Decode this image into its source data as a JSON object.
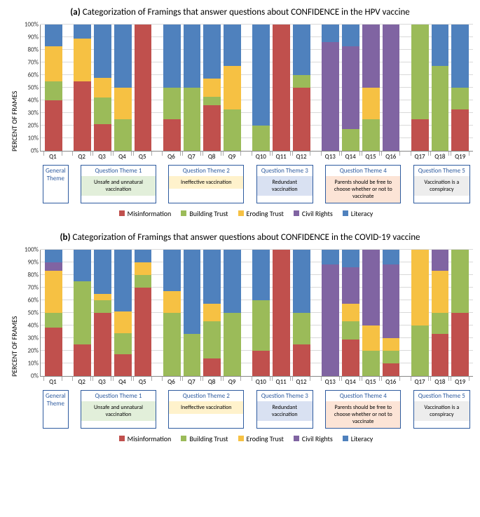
{
  "colors": {
    "misinformation": "#c0504d",
    "building_trust": "#9bbb59",
    "eroding_trust": "#f6c143",
    "civil_rights": "#8064a2",
    "literacy": "#4f81bd",
    "grid": "#d9d9d9",
    "axis": "#888888",
    "theme_border": "#2e5b9f",
    "theme1_bg": "#e2efda",
    "theme2_bg": "#fff2cc",
    "theme3_bg": "#d9e1f2",
    "theme4_bg": "#fce4d6",
    "theme5_bg": "#ededed"
  },
  "yaxis": {
    "label": "PERCENT OF FRAMES",
    "ticks": [
      0,
      10,
      20,
      30,
      40,
      50,
      60,
      70,
      80,
      90,
      100
    ]
  },
  "legend": [
    "Misinformation",
    "Building Trust",
    "Eroding Trust",
    "Civil Rights",
    "Literacy"
  ],
  "legend_keys": [
    "misinformation",
    "building_trust",
    "eroding_trust",
    "civil_rights",
    "literacy"
  ],
  "categories": [
    "Q1",
    "Q2",
    "Q3",
    "Q4",
    "Q5",
    "Q6",
    "Q7",
    "Q8",
    "Q9",
    "Q10",
    "Q11",
    "Q12",
    "Q13",
    "Q14",
    "Q15",
    "Q16",
    "Q17",
    "Q18",
    "Q19"
  ],
  "groups": [
    {
      "span": 1,
      "title": "General Theme",
      "sub": "",
      "bg": "#ffffff"
    },
    {
      "span": 4,
      "title": "Question Theme 1",
      "sub": "Unsafe and unnatural vaccination",
      "bg": "#e2efda"
    },
    {
      "span": 4,
      "title": "Question Theme 2",
      "sub": "Ineffective vaccination",
      "bg": "#fff2cc"
    },
    {
      "span": 3,
      "title": "Question Theme 3",
      "sub": "Redundant vaccination",
      "bg": "#d9e1f2"
    },
    {
      "span": 4,
      "title": "Question Theme 4",
      "sub": "Parents should be free to choose whether or not to vaccinate",
      "bg": "#fce4d6"
    },
    {
      "span": 3,
      "title": "Question Theme 5",
      "sub": "Vaccination is a conspiracy",
      "bg": "#ededed"
    }
  ],
  "panels": {
    "a": {
      "title_prefix": "(a)",
      "title": "Categorization of Framings that answer questions about CONFIDENCE in the HPV vaccine",
      "data": [
        {
          "misinformation": 40,
          "building_trust": 15,
          "eroding_trust": 28,
          "civil_rights": 0,
          "literacy": 17
        },
        {
          "misinformation": 55,
          "building_trust": 0,
          "eroding_trust": 34,
          "civil_rights": 0,
          "literacy": 11
        },
        {
          "misinformation": 21,
          "building_trust": 21,
          "eroding_trust": 16,
          "civil_rights": 0,
          "literacy": 42
        },
        {
          "misinformation": 0,
          "building_trust": 25,
          "eroding_trust": 25,
          "civil_rights": 0,
          "literacy": 50
        },
        {
          "misinformation": 100,
          "building_trust": 0,
          "eroding_trust": 0,
          "civil_rights": 0,
          "literacy": 0
        },
        {
          "misinformation": 25,
          "building_trust": 25,
          "eroding_trust": 0,
          "civil_rights": 0,
          "literacy": 50
        },
        {
          "misinformation": 0,
          "building_trust": 50,
          "eroding_trust": 0,
          "civil_rights": 0,
          "literacy": 50
        },
        {
          "misinformation": 36,
          "building_trust": 7,
          "eroding_trust": 14,
          "civil_rights": 0,
          "literacy": 43
        },
        {
          "misinformation": 0,
          "building_trust": 33,
          "eroding_trust": 34,
          "civil_rights": 0,
          "literacy": 33
        },
        {
          "misinformation": 0,
          "building_trust": 20,
          "eroding_trust": 0,
          "civil_rights": 0,
          "literacy": 80
        },
        {
          "misinformation": 100,
          "building_trust": 0,
          "eroding_trust": 0,
          "civil_rights": 0,
          "literacy": 0
        },
        {
          "misinformation": 50,
          "building_trust": 10,
          "eroding_trust": 0,
          "civil_rights": 0,
          "literacy": 40
        },
        {
          "misinformation": 0,
          "building_trust": 0,
          "eroding_trust": 0,
          "civil_rights": 86,
          "literacy": 14
        },
        {
          "misinformation": 0,
          "building_trust": 17,
          "eroding_trust": 0,
          "civil_rights": 66,
          "literacy": 17
        },
        {
          "misinformation": 0,
          "building_trust": 25,
          "eroding_trust": 25,
          "civil_rights": 50,
          "literacy": 0
        },
        {
          "misinformation": 0,
          "building_trust": 0,
          "eroding_trust": 0,
          "civil_rights": 100,
          "literacy": 0
        },
        {
          "misinformation": 25,
          "building_trust": 75,
          "eroding_trust": 0,
          "civil_rights": 0,
          "literacy": 0
        },
        {
          "misinformation": 0,
          "building_trust": 67,
          "eroding_trust": 0,
          "civil_rights": 0,
          "literacy": 33
        },
        {
          "misinformation": 33,
          "building_trust": 17,
          "eroding_trust": 0,
          "civil_rights": 0,
          "literacy": 50
        }
      ]
    },
    "b": {
      "title_prefix": "(b)",
      "title": "Categorization of Framings that answer questions about CONFIDENCE in the COVID-19 vaccine",
      "data": [
        {
          "misinformation": 38,
          "building_trust": 12,
          "eroding_trust": 33,
          "civil_rights": 7,
          "literacy": 10
        },
        {
          "misinformation": 25,
          "building_trust": 50,
          "eroding_trust": 0,
          "civil_rights": 0,
          "literacy": 25
        },
        {
          "misinformation": 50,
          "building_trust": 10,
          "eroding_trust": 5,
          "civil_rights": 0,
          "literacy": 35
        },
        {
          "misinformation": 17,
          "building_trust": 17,
          "eroding_trust": 17,
          "civil_rights": 0,
          "literacy": 49
        },
        {
          "misinformation": 70,
          "building_trust": 10,
          "eroding_trust": 10,
          "civil_rights": 0,
          "literacy": 10
        },
        {
          "misinformation": 0,
          "building_trust": 50,
          "eroding_trust": 17,
          "civil_rights": 0,
          "literacy": 33
        },
        {
          "misinformation": 0,
          "building_trust": 33,
          "eroding_trust": 0,
          "civil_rights": 0,
          "literacy": 67
        },
        {
          "misinformation": 14,
          "building_trust": 29,
          "eroding_trust": 14,
          "civil_rights": 0,
          "literacy": 43
        },
        {
          "misinformation": 0,
          "building_trust": 50,
          "eroding_trust": 0,
          "civil_rights": 0,
          "literacy": 50
        },
        {
          "misinformation": 20,
          "building_trust": 40,
          "eroding_trust": 0,
          "civil_rights": 0,
          "literacy": 40
        },
        {
          "misinformation": 100,
          "building_trust": 0,
          "eroding_trust": 0,
          "civil_rights": 0,
          "literacy": 0
        },
        {
          "misinformation": 25,
          "building_trust": 25,
          "eroding_trust": 0,
          "civil_rights": 0,
          "literacy": 50
        },
        {
          "misinformation": 0,
          "building_trust": 0,
          "eroding_trust": 0,
          "civil_rights": 88,
          "literacy": 12
        },
        {
          "misinformation": 29,
          "building_trust": 14,
          "eroding_trust": 14,
          "civil_rights": 29,
          "literacy": 14
        },
        {
          "misinformation": 0,
          "building_trust": 20,
          "eroding_trust": 20,
          "civil_rights": 60,
          "literacy": 0
        },
        {
          "misinformation": 10,
          "building_trust": 10,
          "eroding_trust": 10,
          "civil_rights": 58,
          "literacy": 12
        },
        {
          "misinformation": 0,
          "building_trust": 40,
          "eroding_trust": 60,
          "civil_rights": 0,
          "literacy": 0
        },
        {
          "misinformation": 33,
          "building_trust": 17,
          "eroding_trust": 33,
          "civil_rights": 17,
          "literacy": 0
        },
        {
          "misinformation": 50,
          "building_trust": 50,
          "eroding_trust": 0,
          "civil_rights": 0,
          "literacy": 0
        }
      ]
    }
  }
}
